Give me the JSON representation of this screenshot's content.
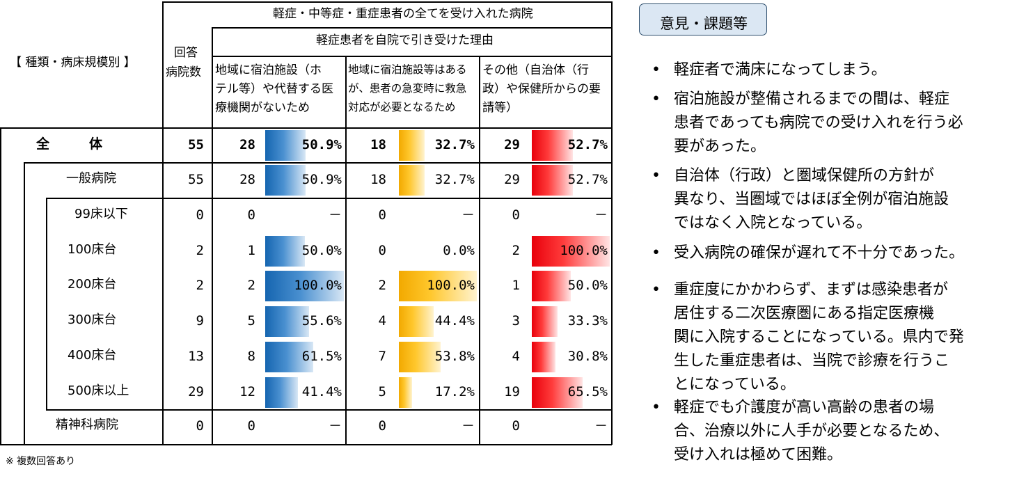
{
  "table": {
    "group_label": "【 種類・病床規模別 】",
    "respondents_header_line1": "回答",
    "respondents_header_line2": "病院数",
    "top_header": "軽症・中等症・重症患者の全てを受け入れた病院",
    "sub_header": "軽症患者を自院で引き受けた理由",
    "reason_headers": [
      [
        "地域に宿泊施設（ホ",
        "テル等）や代替する医",
        "療機関がないため"
      ],
      [
        "地域に宿泊施設等はある",
        "が、患者の急変時に救急",
        "対応が必要となるため"
      ],
      [
        "その他（自治体（行",
        "政）や保健所からの要",
        "請等）"
      ]
    ],
    "rows": [
      {
        "label": "全　　　体",
        "respondents": "55",
        "r1_count": "28",
        "r1_pct": "50.9%",
        "r1_value": 50.9,
        "r2_count": "18",
        "r2_pct": "32.7%",
        "r2_value": 32.7,
        "r3_count": "29",
        "r3_pct": "52.7%",
        "r3_value": 52.7
      },
      {
        "label": "一般病院",
        "respondents": "55",
        "r1_count": "28",
        "r1_pct": "50.9%",
        "r1_value": 50.9,
        "r2_count": "18",
        "r2_pct": "32.7%",
        "r2_value": 32.7,
        "r3_count": "29",
        "r3_pct": "52.7%",
        "r3_value": 52.7
      },
      {
        "label": "99床以下",
        "respondents": "0",
        "r1_count": "0",
        "r1_pct": "－",
        "r1_value": 0,
        "r2_count": "0",
        "r2_pct": "－",
        "r2_value": 0,
        "r3_count": "0",
        "r3_pct": "－",
        "r3_value": 0
      },
      {
        "label": "100床台",
        "respondents": "2",
        "r1_count": "1",
        "r1_pct": "50.0%",
        "r1_value": 50.0,
        "r2_count": "0",
        "r2_pct": "0.0%",
        "r2_value": 0,
        "r3_count": "2",
        "r3_pct": "100.0%",
        "r3_value": 100.0
      },
      {
        "label": "200床台",
        "respondents": "2",
        "r1_count": "2",
        "r1_pct": "100.0%",
        "r1_value": 100.0,
        "r2_count": "2",
        "r2_pct": "100.0%",
        "r2_value": 100.0,
        "r3_count": "1",
        "r3_pct": "50.0%",
        "r3_value": 50.0
      },
      {
        "label": "300床台",
        "respondents": "9",
        "r1_count": "5",
        "r1_pct": "55.6%",
        "r1_value": 55.6,
        "r2_count": "4",
        "r2_pct": "44.4%",
        "r2_value": 44.4,
        "r3_count": "3",
        "r3_pct": "33.3%",
        "r3_value": 33.3
      },
      {
        "label": "400床台",
        "respondents": "13",
        "r1_count": "8",
        "r1_pct": "61.5%",
        "r1_value": 61.5,
        "r2_count": "7",
        "r2_pct": "53.8%",
        "r2_value": 53.8,
        "r3_count": "4",
        "r3_pct": "30.8%",
        "r3_value": 30.8
      },
      {
        "label": "500床以上",
        "respondents": "29",
        "r1_count": "12",
        "r1_pct": "41.4%",
        "r1_value": 41.4,
        "r2_count": "5",
        "r2_pct": "17.2%",
        "r2_value": 17.2,
        "r3_count": "19",
        "r3_pct": "65.5%",
        "r3_value": 65.5
      },
      {
        "label": "精神科病院",
        "respondents": "0",
        "r1_count": "0",
        "r1_pct": "－",
        "r1_value": 0,
        "r2_count": "0",
        "r2_pct": "－",
        "r2_value": 0,
        "r3_count": "0",
        "r3_pct": "－",
        "r3_value": 0
      }
    ],
    "footnote": "※ 複数回答あり"
  },
  "colors": {
    "reason1_bar": "#1565b0",
    "reason2_bar": "#ffc72c",
    "reason3_bar": "#e8000b",
    "opinion_box_fill": "#dbe7f3",
    "opinion_box_border": "#2c4d6c"
  },
  "opinions": {
    "title": "意見・課題等",
    "items": [
      [
        "軽症者で満床になってしまう。"
      ],
      [
        "宿泊施設が整備されるまでの間は、軽症",
        "患者であっても病院での受け入れを行う必",
        "要があった。"
      ],
      [
        "自治体（行政）と圏域保健所の方針が",
        "異なり、当圏域ではほぼ全例が宿泊施設",
        "ではなく入院となっている。"
      ],
      [
        "受入病院の確保が遅れて不十分であった。"
      ],
      [
        "重症度にかかわらず、まずは感染患者が",
        "居住する二次医療圏にある指定医療機",
        "関に入院することになっている。県内で発",
        "生した重症患者は、当院で診療を行うこ",
        "とになっている。"
      ],
      [
        "軽症でも介護度が高い高齢の患者の場",
        "合、治療以外に人手が必要となるため、",
        "受け入れは極めて困難。"
      ]
    ]
  }
}
